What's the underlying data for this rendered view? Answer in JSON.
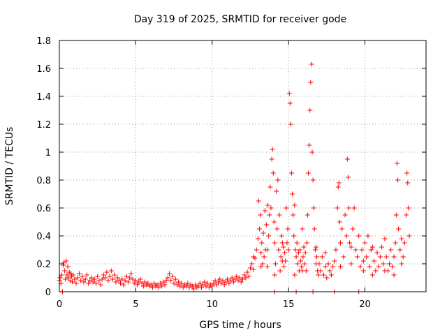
{
  "chart_data": {
    "type": "scatter",
    "title": "Day 319 of 2025, SRMTID for receiver gode",
    "xlabel": "GPS time / hours",
    "ylabel": "SRMTID / TECUs",
    "xlim": [
      0,
      24
    ],
    "ylim": [
      0,
      1.8
    ],
    "x_ticks": [
      0,
      5,
      10,
      15,
      20
    ],
    "x_tick_labels": [
      "0",
      "5",
      "10",
      "15",
      "20"
    ],
    "y_ticks": [
      0,
      0.2,
      0.4,
      0.6,
      0.8,
      1.0,
      1.2,
      1.4,
      1.6,
      1.8
    ],
    "y_tick_labels": [
      "0",
      "0.2",
      "0.4",
      "0.6",
      "0.8",
      "1",
      "1.2",
      "1.4",
      "1.6",
      "1.8"
    ],
    "grid": true,
    "marker": "+",
    "color": "#ff0000",
    "series": [
      {
        "name": "SRMTID",
        "points": [
          [
            0.0,
            0.08
          ],
          [
            0.05,
            0.1
          ],
          [
            0.1,
            0.06
          ],
          [
            0.15,
            0.12
          ],
          [
            0.2,
            0.0
          ],
          [
            0.25,
            0.19
          ],
          [
            0.3,
            0.21
          ],
          [
            0.35,
            0.15
          ],
          [
            0.4,
            0.09
          ],
          [
            0.45,
            0.22
          ],
          [
            0.5,
            0.12
          ],
          [
            0.55,
            0.18
          ],
          [
            0.6,
            0.1
          ],
          [
            0.65,
            0.14
          ],
          [
            0.7,
            0.08
          ],
          [
            0.75,
            0.13
          ],
          [
            0.8,
            0.11
          ],
          [
            0.85,
            0.07
          ],
          [
            0.9,
            0.12
          ],
          [
            1.0,
            0.09
          ],
          [
            1.1,
            0.06
          ],
          [
            1.2,
            0.1
          ],
          [
            1.3,
            0.13
          ],
          [
            1.4,
            0.08
          ],
          [
            1.5,
            0.11
          ],
          [
            1.6,
            0.07
          ],
          [
            1.7,
            0.09
          ],
          [
            1.8,
            0.12
          ],
          [
            1.9,
            0.06
          ],
          [
            2.0,
            0.08
          ],
          [
            2.1,
            0.1
          ],
          [
            2.2,
            0.07
          ],
          [
            2.3,
            0.09
          ],
          [
            2.4,
            0.06
          ],
          [
            2.5,
            0.11
          ],
          [
            2.6,
            0.08
          ],
          [
            2.7,
            0.05
          ],
          [
            2.8,
            0.09
          ],
          [
            2.9,
            0.12
          ],
          [
            3.0,
            0.1
          ],
          [
            3.1,
            0.14
          ],
          [
            3.2,
            0.08
          ],
          [
            3.3,
            0.11
          ],
          [
            3.4,
            0.15
          ],
          [
            3.5,
            0.09
          ],
          [
            3.6,
            0.12
          ],
          [
            3.7,
            0.07
          ],
          [
            3.8,
            0.1
          ],
          [
            3.9,
            0.08
          ],
          [
            4.0,
            0.06
          ],
          [
            4.1,
            0.09
          ],
          [
            4.2,
            0.05
          ],
          [
            4.3,
            0.08
          ],
          [
            4.4,
            0.11
          ],
          [
            4.5,
            0.07
          ],
          [
            4.6,
            0.1
          ],
          [
            4.7,
            0.13
          ],
          [
            4.8,
            0.09
          ],
          [
            4.9,
            0.06
          ],
          [
            5.0,
            0.08
          ],
          [
            5.1,
            0.05
          ],
          [
            5.2,
            0.07
          ],
          [
            5.3,
            0.09
          ],
          [
            5.4,
            0.06
          ],
          [
            5.5,
            0.04
          ],
          [
            5.6,
            0.07
          ],
          [
            5.7,
            0.05
          ],
          [
            5.8,
            0.06
          ],
          [
            5.9,
            0.04
          ],
          [
            6.0,
            0.05
          ],
          [
            6.1,
            0.03
          ],
          [
            6.2,
            0.06
          ],
          [
            6.3,
            0.04
          ],
          [
            6.4,
            0.05
          ],
          [
            6.5,
            0.03
          ],
          [
            6.6,
            0.06
          ],
          [
            6.7,
            0.04
          ],
          [
            6.8,
            0.07
          ],
          [
            6.9,
            0.05
          ],
          [
            7.0,
            0.08
          ],
          [
            7.1,
            0.1
          ],
          [
            7.2,
            0.13
          ],
          [
            7.3,
            0.08
          ],
          [
            7.4,
            0.11
          ],
          [
            7.5,
            0.06
          ],
          [
            7.6,
            0.09
          ],
          [
            7.7,
            0.05
          ],
          [
            7.8,
            0.07
          ],
          [
            7.9,
            0.04
          ],
          [
            8.0,
            0.06
          ],
          [
            8.1,
            0.03
          ],
          [
            8.2,
            0.05
          ],
          [
            8.3,
            0.04
          ],
          [
            8.4,
            0.06
          ],
          [
            8.5,
            0.03
          ],
          [
            8.6,
            0.05
          ],
          [
            8.7,
            0.04
          ],
          [
            8.8,
            0.02
          ],
          [
            8.9,
            0.05
          ],
          [
            9.0,
            0.03
          ],
          [
            9.1,
            0.04
          ],
          [
            9.2,
            0.06
          ],
          [
            9.3,
            0.03
          ],
          [
            9.4,
            0.05
          ],
          [
            9.5,
            0.07
          ],
          [
            9.6,
            0.04
          ],
          [
            9.7,
            0.06
          ],
          [
            9.8,
            0.03
          ],
          [
            9.9,
            0.05
          ],
          [
            10.0,
            0.04
          ],
          [
            10.1,
            0.06
          ],
          [
            10.2,
            0.08
          ],
          [
            10.3,
            0.05
          ],
          [
            10.4,
            0.07
          ],
          [
            10.5,
            0.09
          ],
          [
            10.6,
            0.06
          ],
          [
            10.7,
            0.08
          ],
          [
            10.8,
            0.05
          ],
          [
            10.9,
            0.07
          ],
          [
            11.0,
            0.09
          ],
          [
            11.1,
            0.06
          ],
          [
            11.2,
            0.08
          ],
          [
            11.3,
            0.1
          ],
          [
            11.4,
            0.07
          ],
          [
            11.5,
            0.09
          ],
          [
            11.6,
            0.11
          ],
          [
            11.7,
            0.08
          ],
          [
            11.8,
            0.1
          ],
          [
            11.9,
            0.07
          ],
          [
            12.0,
            0.09
          ],
          [
            12.1,
            0.12
          ],
          [
            12.2,
            0.1
          ],
          [
            12.3,
            0.14
          ],
          [
            12.4,
            0.11
          ],
          [
            12.5,
            0.17
          ],
          [
            12.6,
            0.2
          ],
          [
            12.7,
            0.16
          ],
          [
            12.8,
            0.24
          ],
          [
            12.9,
            0.3
          ],
          [
            13.0,
            0.38
          ],
          [
            13.05,
            0.65
          ],
          [
            13.1,
            0.45
          ],
          [
            13.15,
            0.55
          ],
          [
            13.2,
            0.28
          ],
          [
            13.25,
            0.35
          ],
          [
            13.3,
            0.2
          ],
          [
            13.35,
            0.42
          ],
          [
            13.4,
            0.25
          ],
          [
            13.45,
            0.58
          ],
          [
            13.5,
            0.3
          ],
          [
            13.55,
            0.48
          ],
          [
            13.6,
            0.18
          ],
          [
            13.65,
            0.62
          ],
          [
            13.7,
            0.4
          ],
          [
            13.75,
            0.55
          ],
          [
            13.8,
            0.75
          ],
          [
            13.85,
            0.6
          ],
          [
            13.9,
            0.95
          ],
          [
            13.95,
            1.02
          ],
          [
            14.0,
            0.85
          ],
          [
            14.05,
            0.5
          ],
          [
            14.1,
            0.35
          ],
          [
            14.15,
            0.2
          ],
          [
            14.2,
            0.72
          ],
          [
            14.25,
            0.45
          ],
          [
            14.3,
            0.8
          ],
          [
            14.35,
            0.3
          ],
          [
            14.4,
            0.55
          ],
          [
            14.45,
            0.15
          ],
          [
            14.5,
            0.25
          ],
          [
            14.55,
            0.4
          ],
          [
            14.6,
            0.22
          ],
          [
            14.65,
            0.32
          ],
          [
            14.7,
            0.18
          ],
          [
            14.75,
            0.28
          ],
          [
            14.8,
            0.22
          ],
          [
            14.85,
            0.6
          ],
          [
            14.9,
            0.35
          ],
          [
            14.95,
            0.45
          ],
          [
            15.0,
            0.3
          ],
          [
            15.05,
            1.42
          ],
          [
            15.1,
            1.35
          ],
          [
            15.15,
            1.2
          ],
          [
            15.2,
            0.85
          ],
          [
            15.25,
            0.7
          ],
          [
            15.3,
            0.55
          ],
          [
            15.35,
            0.4
          ],
          [
            15.4,
            0.62
          ],
          [
            15.45,
            0.3
          ],
          [
            15.5,
            0.25
          ],
          [
            15.55,
            0.35
          ],
          [
            15.6,
            0.2
          ],
          [
            15.65,
            0.28
          ],
          [
            15.7,
            0.15
          ],
          [
            15.75,
            0.3
          ],
          [
            15.8,
            0.22
          ],
          [
            15.85,
            0.18
          ],
          [
            15.9,
            0.45
          ],
          [
            15.95,
            0.25
          ],
          [
            16.0,
            0.32
          ],
          [
            16.05,
            0.2
          ],
          [
            16.1,
            0.28
          ],
          [
            16.15,
            0.15
          ],
          [
            16.2,
            0.35
          ],
          [
            16.25,
            0.55
          ],
          [
            16.3,
            0.85
          ],
          [
            16.35,
            1.05
          ],
          [
            16.4,
            1.3
          ],
          [
            16.45,
            1.5
          ],
          [
            16.5,
            1.63
          ],
          [
            16.55,
            1.0
          ],
          [
            16.6,
            0.8
          ],
          [
            16.65,
            0.6
          ],
          [
            16.7,
            0.45
          ],
          [
            16.75,
            0.3
          ],
          [
            16.8,
            0.2
          ],
          [
            16.85,
            0.25
          ],
          [
            16.9,
            0.15
          ],
          [
            16.95,
            0.12
          ],
          [
            17.0,
            0.2
          ],
          [
            17.1,
            0.15
          ],
          [
            17.2,
            0.25
          ],
          [
            17.3,
            0.12
          ],
          [
            17.4,
            0.18
          ],
          [
            17.5,
            0.1
          ],
          [
            17.6,
            0.2
          ],
          [
            17.7,
            0.15
          ],
          [
            17.8,
            0.12
          ],
          [
            17.9,
            0.18
          ],
          [
            18.0,
            0.22
          ],
          [
            18.1,
            0.3
          ],
          [
            18.2,
            0.6
          ],
          [
            18.25,
            0.75
          ],
          [
            18.3,
            0.78
          ],
          [
            18.35,
            0.5
          ],
          [
            18.4,
            0.35
          ],
          [
            18.5,
            0.45
          ],
          [
            18.6,
            0.25
          ],
          [
            18.7,
            0.55
          ],
          [
            18.8,
            0.4
          ],
          [
            18.85,
            0.95
          ],
          [
            18.9,
            0.82
          ],
          [
            18.95,
            0.6
          ],
          [
            19.0,
            0.35
          ],
          [
            19.1,
            0.2
          ],
          [
            19.2,
            0.45
          ],
          [
            19.3,
            0.6
          ],
          [
            19.4,
            0.3
          ],
          [
            19.5,
            0.25
          ],
          [
            19.6,
            0.4
          ],
          [
            19.7,
            0.18
          ],
          [
            19.8,
            0.3
          ],
          [
            19.9,
            0.22
          ],
          [
            20.0,
            0.35
          ],
          [
            20.1,
            0.25
          ],
          [
            20.2,
            0.4
          ],
          [
            20.3,
            0.18
          ],
          [
            20.4,
            0.3
          ],
          [
            20.5,
            0.12
          ],
          [
            20.6,
            0.22
          ],
          [
            20.7,
            0.15
          ],
          [
            20.8,
            0.28
          ],
          [
            20.9,
            0.18
          ],
          [
            21.0,
            0.25
          ],
          [
            21.1,
            0.32
          ],
          [
            21.2,
            0.2
          ],
          [
            21.3,
            0.38
          ],
          [
            21.4,
            0.25
          ],
          [
            21.5,
            0.15
          ],
          [
            21.6,
            0.2
          ],
          [
            21.7,
            0.3
          ],
          [
            21.8,
            0.18
          ],
          [
            21.9,
            0.25
          ],
          [
            22.0,
            0.35
          ],
          [
            22.05,
            0.55
          ],
          [
            22.1,
            0.92
          ],
          [
            22.15,
            0.8
          ],
          [
            22.2,
            0.45
          ],
          [
            22.3,
            0.3
          ],
          [
            22.4,
            0.2
          ],
          [
            22.5,
            0.25
          ],
          [
            22.6,
            0.35
          ],
          [
            22.7,
            0.55
          ],
          [
            22.75,
            0.85
          ],
          [
            22.8,
            0.78
          ],
          [
            22.85,
            0.6
          ],
          [
            22.9,
            0.4
          ],
          [
            12.7,
            0.25
          ],
          [
            13.2,
            0.18
          ],
          [
            13.6,
            0.3
          ],
          [
            14.1,
            0.12
          ],
          [
            14.6,
            0.35
          ],
          [
            15.4,
            0.12
          ],
          [
            15.9,
            0.15
          ],
          [
            16.8,
            0.32
          ],
          [
            17.4,
            0.28
          ],
          [
            18.4,
            0.18
          ],
          [
            19.1,
            0.32
          ],
          [
            19.9,
            0.15
          ],
          [
            20.5,
            0.32
          ],
          [
            21.3,
            0.15
          ],
          [
            21.9,
            0.12
          ],
          [
            22.4,
            0.38
          ],
          [
            14.1,
            0.0
          ],
          [
            15.5,
            0.0
          ],
          [
            16.6,
            0.0
          ],
          [
            18.0,
            0.0
          ],
          [
            19.6,
            0.0
          ],
          [
            0.2,
            0.0
          ]
        ]
      }
    ]
  }
}
